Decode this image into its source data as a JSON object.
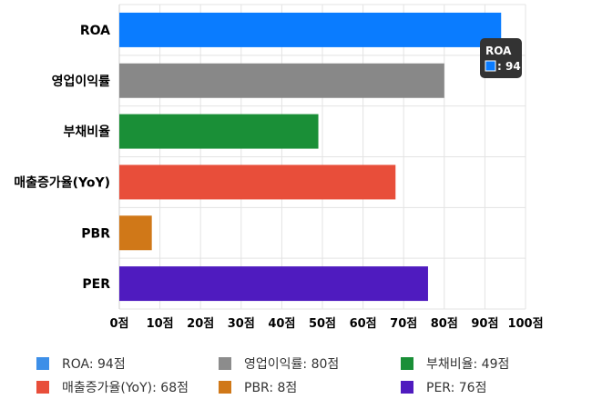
{
  "chart_data": {
    "type": "bar",
    "orientation": "horizontal",
    "categories": [
      "ROA",
      "영업이익률",
      "부채비율",
      "매출증가율(YoY)",
      "PBR",
      "PER"
    ],
    "values": [
      94,
      80,
      49,
      68,
      8,
      76
    ],
    "colors": [
      "#0a7cff",
      "#888888",
      "#1a8f37",
      "#e84e3a",
      "#d07818",
      "#4f1bbf"
    ],
    "xlim": [
      0,
      100
    ],
    "xticks": [
      "0점",
      "10점",
      "20점",
      "30점",
      "40점",
      "50점",
      "60점",
      "70점",
      "80점",
      "90점",
      "100점"
    ],
    "grid": true,
    "legend_position": "bottom",
    "tooltip": {
      "title": "ROA",
      "value": ": 94"
    }
  },
  "legend": [
    {
      "label": "ROA: 94점",
      "color": "#3d8fe8"
    },
    {
      "label": "영업이익률: 80점",
      "color": "#8c8c8c"
    },
    {
      "label": "부채비율: 49점",
      "color": "#1a8f37"
    },
    {
      "label": "매출증가율(YoY): 68점",
      "color": "#e84e3a"
    },
    {
      "label": "PBR: 8점",
      "color": "#d07818"
    },
    {
      "label": "PER: 76점",
      "color": "#4f1bbf"
    }
  ]
}
